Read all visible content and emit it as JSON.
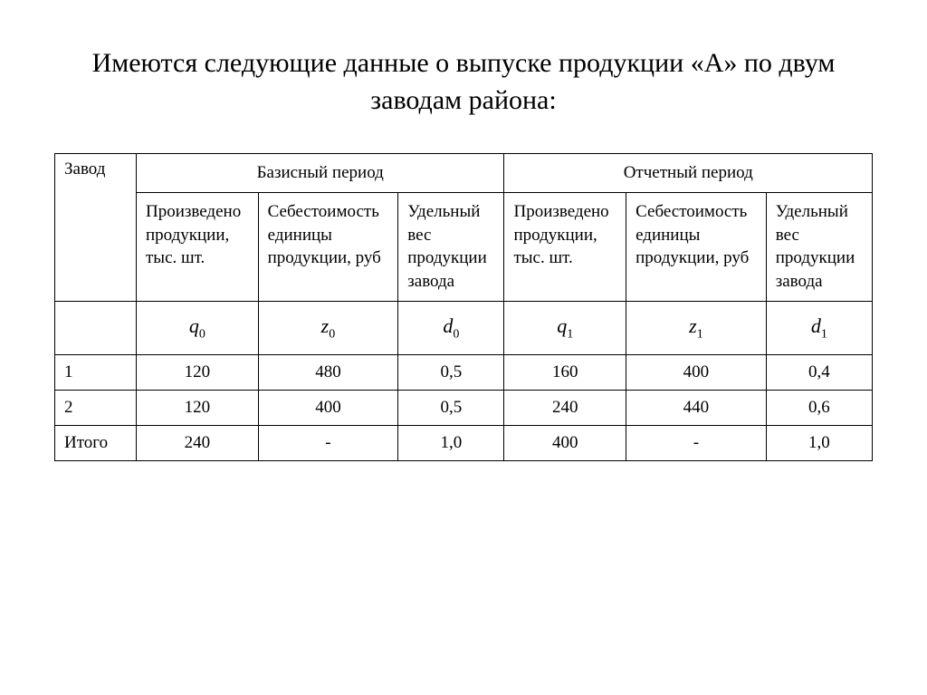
{
  "title": "Имеются следующие данные о выпуске продукции «А» по двум заводам района:",
  "table": {
    "col1_header": "Завод",
    "period1_header": "Базисный период",
    "period2_header": "Отчетный период",
    "subheaders": {
      "produced": "Произведено продукции, тыс. шт.",
      "cost": "Себестоимость единицы продукции, руб",
      "weight1": "Удельный вес продукции завода",
      "produced2": "Произведено продукции, тыс. шт.",
      "cost2": "Себестоимость единицы продукции, руб",
      "weight2": "Удельный вес продукции завода"
    },
    "symbols": {
      "q0": "q",
      "q0_sub": "0",
      "z0": "z",
      "z0_sub": "0",
      "d0": "d",
      "d0_sub": "0",
      "q1": "q",
      "q1_sub": "1",
      "z1": "z",
      "z1_sub": "1",
      "d1": "d",
      "d1_sub": "1"
    },
    "rows": [
      {
        "factory": "1",
        "q0": "120",
        "z0": "480",
        "d0": "0,5",
        "q1": "160",
        "z1": "400",
        "d1": "0,4"
      },
      {
        "factory": "2",
        "q0": "120",
        "z0": "400",
        "d0": "0,5",
        "q1": "240",
        "z1": "440",
        "d1": "0,6"
      },
      {
        "factory": "Итого",
        "q0": "240",
        "z0": "-",
        "d0": "1,0",
        "q1": "400",
        "z1": "-",
        "d1": "1,0"
      }
    ]
  },
  "styling": {
    "background_color": "#ffffff",
    "text_color": "#000000",
    "border_color": "#000000",
    "title_fontsize": 30,
    "table_fontsize": 19,
    "symbol_fontsize": 22,
    "font_family": "Times New Roman"
  }
}
